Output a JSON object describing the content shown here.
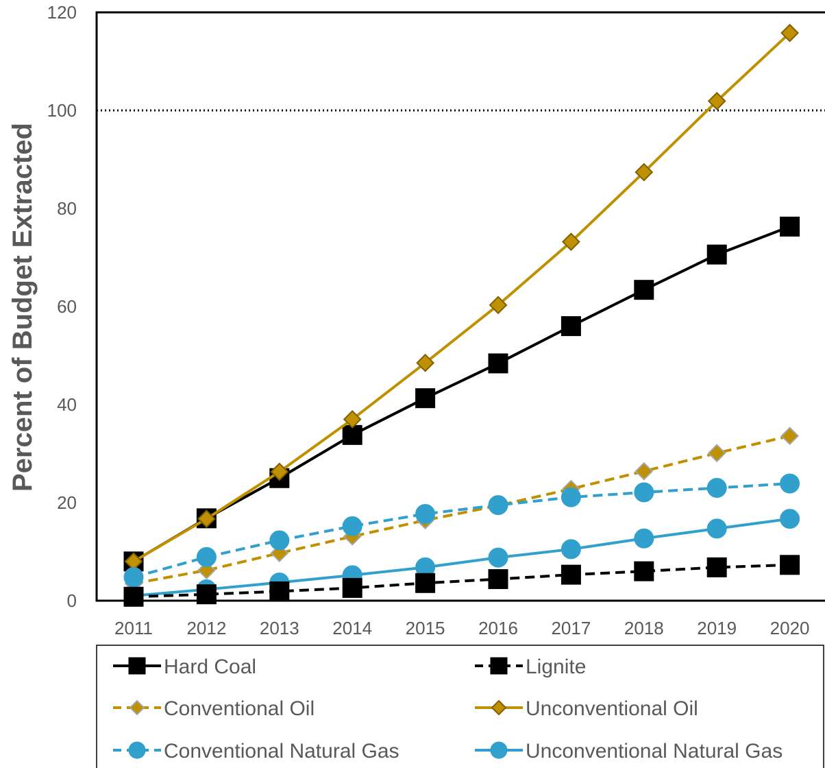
{
  "chart_data": {
    "type": "line",
    "title": "",
    "xlabel": "",
    "ylabel": "Percent of Budget Extracted",
    "x": [
      "2011",
      "2012",
      "2013",
      "2014",
      "2015",
      "2016",
      "2017",
      "2018",
      "2019",
      "2020"
    ],
    "ylim": [
      0,
      120
    ],
    "yticks": [
      "0",
      "20",
      "40",
      "60",
      "80",
      "100",
      "120"
    ],
    "grid": false,
    "legend_position": "bottom",
    "reference_line": {
      "y": 100,
      "style": "dotted",
      "color": "#000000"
    },
    "series": [
      {
        "name": "Hard Coal",
        "color": "#000000",
        "line": "solid",
        "marker": "square",
        "marker_fill": "#000000",
        "marker_stroke": "#000000",
        "values": [
          8,
          16.8,
          25,
          33.8,
          41.3,
          48.4,
          56,
          63.4,
          70.6,
          76.3
        ]
      },
      {
        "name": "Lignite",
        "color": "#000000",
        "line": "dashed",
        "marker": "square",
        "marker_fill": "#000000",
        "marker_stroke": "#000000",
        "values": [
          0.8,
          1.3,
          1.9,
          2.6,
          3.6,
          4.4,
          5.3,
          6,
          6.8,
          7.3
        ]
      },
      {
        "name": "Conventional Oil",
        "color": "#BF9000",
        "line": "dashed",
        "marker": "diamond",
        "marker_fill": "#BF9000",
        "marker_stroke": "#A6A6A6",
        "values": [
          3.5,
          6.2,
          9.7,
          13.1,
          16.4,
          19.4,
          22.8,
          26.4,
          30.1,
          33.6
        ]
      },
      {
        "name": "Unconventional Oil",
        "color": "#BF9000",
        "line": "solid",
        "marker": "diamond",
        "marker_fill": "#BF9000",
        "marker_stroke": "#7F6000",
        "values": [
          8,
          16.7,
          26.3,
          37,
          48.5,
          60.3,
          73.2,
          87.4,
          101.9,
          115.8
        ]
      },
      {
        "name": "Conventional Natural Gas",
        "color": "#31A0CD",
        "line": "dashed",
        "marker": "circle",
        "marker_fill": "#31A0CD",
        "marker_stroke": "#31A0CD",
        "values": [
          4.8,
          8.9,
          12.3,
          15.2,
          17.7,
          19.5,
          21.1,
          22.1,
          23,
          23.9
        ]
      },
      {
        "name": "Unconventional Natural Gas",
        "color": "#31A0CD",
        "line": "solid",
        "marker": "circle",
        "marker_fill": "#31A0CD",
        "marker_stroke": "#31A0CD",
        "values": [
          1,
          2.3,
          3.7,
          5.2,
          6.8,
          8.8,
          10.5,
          12.7,
          14.7,
          16.7
        ]
      }
    ],
    "legend_rows": [
      [
        "Hard Coal",
        "Lignite"
      ],
      [
        "Conventional Oil",
        "Unconventional Oil"
      ],
      [
        "Conventional Natural Gas",
        "Unconventional Natural Gas"
      ]
    ]
  }
}
